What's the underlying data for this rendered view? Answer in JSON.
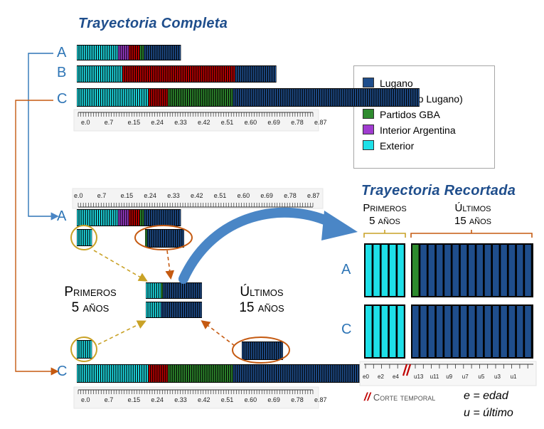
{
  "title_full": "Trayectoria Completa",
  "title_cropped": "Trayectoria Recortada",
  "legend": [
    {
      "label": "Lugano",
      "color": "#1f4e8c"
    },
    {
      "label": "CABA (no Lugano)",
      "color": "#c00000"
    },
    {
      "label": "Partidos GBA",
      "color": "#2e8b2e"
    },
    {
      "label": "Interior Argentina",
      "color": "#a03cd0"
    },
    {
      "label": "Exterior",
      "color": "#1ee0e8"
    }
  ],
  "rows": {
    "a": "A",
    "b": "B",
    "c": "C"
  },
  "age_ticks": [
    "e.0",
    "e.7",
    "e.15",
    "e.24",
    "e.33",
    "e.42",
    "e.51",
    "e.60",
    "e.69",
    "e.78",
    "e.87"
  ],
  "cropped_ticks": {
    "first": [
      "e0",
      "e2",
      "e4"
    ],
    "last": [
      "u13",
      "u11",
      "u9",
      "u7",
      "u5",
      "u3",
      "u1"
    ]
  },
  "sequences": {
    "A": [
      "X",
      "X",
      "X",
      "X",
      "X",
      "X",
      "X",
      "X",
      "X",
      "X",
      "X",
      "X",
      "X",
      "X",
      "X",
      "X",
      "X",
      "X",
      "X",
      "I",
      "I",
      "I",
      "I",
      "I",
      "C",
      "C",
      "C",
      "C",
      "C",
      "G",
      "G",
      "L",
      "L",
      "L",
      "L",
      "L",
      "L",
      "L",
      "L",
      "L",
      "L",
      "L",
      "L",
      "L",
      "L",
      "L",
      "L",
      "L"
    ],
    "B": [
      "X",
      "X",
      "X",
      "X",
      "X",
      "X",
      "X",
      "X",
      "X",
      "X",
      "X",
      "X",
      "X",
      "X",
      "X",
      "X",
      "X",
      "X",
      "X",
      "X",
      "X",
      "C",
      "C",
      "C",
      "C",
      "C",
      "C",
      "C",
      "C",
      "C",
      "C",
      "C",
      "C",
      "C",
      "C",
      "C",
      "C",
      "C",
      "C",
      "C",
      "C",
      "C",
      "C",
      "C",
      "C",
      "C",
      "C",
      "C",
      "C",
      "C",
      "C",
      "C",
      "C",
      "C",
      "C",
      "C",
      "C",
      "C",
      "C",
      "C",
      "C",
      "C",
      "C",
      "C",
      "C",
      "C",
      "C",
      "C",
      "C",
      "C",
      "C",
      "C",
      "C",
      "L",
      "L",
      "L",
      "L",
      "L",
      "L",
      "L",
      "L",
      "L",
      "L",
      "L",
      "L",
      "L",
      "L",
      "L",
      "L",
      "L",
      "L",
      "L"
    ],
    "C": [
      "X",
      "X",
      "X",
      "X",
      "X",
      "X",
      "X",
      "X",
      "X",
      "X",
      "X",
      "X",
      "X",
      "X",
      "X",
      "X",
      "X",
      "X",
      "X",
      "X",
      "X",
      "X",
      "X",
      "X",
      "X",
      "X",
      "X",
      "X",
      "X",
      "X",
      "X",
      "X",
      "X",
      "C",
      "C",
      "C",
      "C",
      "C",
      "C",
      "C",
      "C",
      "C",
      "G",
      "G",
      "G",
      "G",
      "G",
      "G",
      "G",
      "G",
      "G",
      "G",
      "G",
      "G",
      "G",
      "G",
      "G",
      "G",
      "G",
      "G",
      "G",
      "G",
      "G",
      "G",
      "G",
      "G",
      "G",
      "G",
      "G",
      "G",
      "G",
      "G",
      "L",
      "L",
      "L",
      "L",
      "L",
      "L",
      "L",
      "L",
      "L",
      "L",
      "L",
      "L",
      "L",
      "L",
      "L",
      "L",
      "L",
      "L",
      "L",
      "L",
      "L",
      "L",
      "L",
      "L",
      "L",
      "L",
      "L",
      "L",
      "L",
      "L",
      "L",
      "L",
      "L",
      "L",
      "L",
      "L",
      "L",
      "L",
      "L",
      "L",
      "L",
      "L",
      "L",
      "L",
      "L",
      "L",
      "L",
      "L",
      "L",
      "L",
      "L",
      "L",
      "L",
      "L",
      "L",
      "L",
      "L",
      "L",
      "L",
      "L",
      "L",
      "L",
      "L",
      "L",
      "L",
      "L",
      "L",
      "L",
      "L",
      "L",
      "L",
      "L",
      "L",
      "L",
      "L",
      "L",
      "L",
      "L",
      "L",
      "L",
      "L",
      "L",
      "L",
      "L",
      "L",
      "L"
    ]
  },
  "cropped": {
    "A": {
      "first": [
        "X",
        "X",
        "X",
        "X",
        "X"
      ],
      "last": [
        "G",
        "L",
        "L",
        "L",
        "L",
        "L",
        "L",
        "L",
        "L",
        "L",
        "L",
        "L",
        "L",
        "L",
        "L"
      ]
    },
    "C": {
      "first": [
        "X",
        "X",
        "X",
        "X",
        "X"
      ],
      "last": [
        "L",
        "L",
        "L",
        "L",
        "L",
        "L",
        "L",
        "L",
        "L",
        "L",
        "L",
        "L",
        "L",
        "L",
        "L"
      ]
    }
  },
  "mid_first_label": {
    "line1": "Primeros",
    "line2": "5 años"
  },
  "mid_last_label": {
    "line1": "Últimos",
    "line2": "15 años"
  },
  "crop_first_label": {
    "line1": "Primeros",
    "line2": "5 años"
  },
  "crop_last_label": {
    "line1": "Últimos",
    "line2": "15 años"
  },
  "cut_label": "Corte temporal",
  "note_e": "e = edad",
  "note_u": "u = último",
  "colors": {
    "X": "#1ee0e8",
    "I": "#a03cd0",
    "C": "#c00000",
    "G": "#2e8b2e",
    "L": "#1f4e8c",
    "blue_arrow": "#4a86c6",
    "orange": "#c55a11",
    "gold": "#c9a227",
    "label_blue": "#2e75b6"
  }
}
